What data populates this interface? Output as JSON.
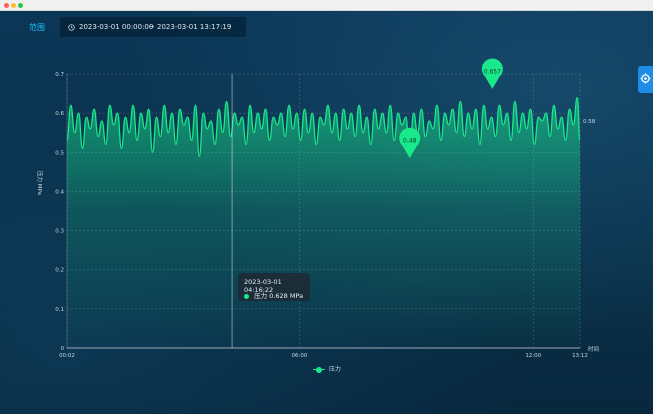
{
  "header": {
    "range_label": "范围",
    "start_time": "2023-03-01 00:00:00",
    "separator": "~",
    "end_time": "2023-03-01 13:17:19",
    "clock_icon": "clock-icon"
  },
  "side_button": {
    "icon": "settings-icon"
  },
  "colors": {
    "series": "#19e98a",
    "accent": "#19c2ff"
  },
  "chart_data": {
    "type": "area",
    "ylabel": "压力 MPa",
    "xlabel": "时间",
    "ylim": [
      0,
      0.7
    ],
    "y_ticks": [
      "0",
      "0.1",
      "0.2",
      "0.3",
      "0.4",
      "0.5",
      "0.6",
      "0.7"
    ],
    "x_range": [
      "00:02",
      "13:12"
    ],
    "x_ticks": [
      {
        "label": "00:02",
        "hour": 0.033
      },
      {
        "label": "06:00",
        "hour": 6.0
      },
      {
        "label": "12:00",
        "hour": 12.0
      },
      {
        "label": "13:12",
        "hour": 13.2
      }
    ],
    "grid": true,
    "legend": "bottom-center",
    "series": [
      {
        "name": "压力",
        "x": [
          0.03,
          0.13,
          0.23,
          0.33,
          0.43,
          0.53,
          0.63,
          0.73,
          0.83,
          0.93,
          1.03,
          1.13,
          1.23,
          1.33,
          1.43,
          1.53,
          1.63,
          1.73,
          1.83,
          1.93,
          2.03,
          2.13,
          2.23,
          2.33,
          2.43,
          2.53,
          2.63,
          2.73,
          2.83,
          2.93,
          3.03,
          3.13,
          3.23,
          3.33,
          3.43,
          3.53,
          3.63,
          3.73,
          3.83,
          3.93,
          4.03,
          4.13,
          4.23,
          4.33,
          4.43,
          4.53,
          4.63,
          4.73,
          4.83,
          4.93,
          5.03,
          5.13,
          5.23,
          5.33,
          5.43,
          5.53,
          5.63,
          5.73,
          5.83,
          5.93,
          6.03,
          6.13,
          6.23,
          6.33,
          6.43,
          6.53,
          6.63,
          6.73,
          6.83,
          6.93,
          7.03,
          7.13,
          7.23,
          7.33,
          7.43,
          7.53,
          7.63,
          7.73,
          7.83,
          7.93,
          8.03,
          8.13,
          8.23,
          8.33,
          8.43,
          8.53,
          8.63,
          8.73,
          8.83,
          8.93,
          9.03,
          9.13,
          9.23,
          9.33,
          9.43,
          9.53,
          9.63,
          9.73,
          9.83,
          9.93,
          10.03,
          10.13,
          10.23,
          10.33,
          10.43,
          10.53,
          10.63,
          10.73,
          10.83,
          10.93,
          11.03,
          11.13,
          11.23,
          11.33,
          11.43,
          11.53,
          11.63,
          11.73,
          11.83,
          11.93,
          12.03,
          12.13,
          12.23,
          12.33,
          12.43,
          12.53,
          12.63,
          12.73,
          12.83,
          12.93,
          13.03,
          13.13,
          13.2
        ],
        "y": [
          0.53,
          0.62,
          0.55,
          0.6,
          0.51,
          0.59,
          0.56,
          0.61,
          0.54,
          0.58,
          0.52,
          0.62,
          0.57,
          0.6,
          0.51,
          0.59,
          0.55,
          0.62,
          0.53,
          0.6,
          0.56,
          0.61,
          0.5,
          0.59,
          0.54,
          0.62,
          0.55,
          0.6,
          0.52,
          0.61,
          0.57,
          0.59,
          0.53,
          0.62,
          0.49,
          0.6,
          0.56,
          0.58,
          0.52,
          0.61,
          0.55,
          0.63,
          0.54,
          0.6,
          0.57,
          0.59,
          0.52,
          0.62,
          0.55,
          0.6,
          0.56,
          0.61,
          0.53,
          0.59,
          0.57,
          0.6,
          0.54,
          0.62,
          0.56,
          0.6,
          0.53,
          0.61,
          0.55,
          0.6,
          0.52,
          0.59,
          0.57,
          0.62,
          0.55,
          0.6,
          0.53,
          0.61,
          0.56,
          0.6,
          0.54,
          0.62,
          0.55,
          0.59,
          0.52,
          0.61,
          0.56,
          0.6,
          0.55,
          0.62,
          0.53,
          0.6,
          0.57,
          0.59,
          0.49,
          0.6,
          0.55,
          0.61,
          0.54,
          0.58,
          0.56,
          0.62,
          0.53,
          0.6,
          0.57,
          0.61,
          0.55,
          0.63,
          0.54,
          0.6,
          0.56,
          0.61,
          0.52,
          0.62,
          0.56,
          0.59,
          0.54,
          0.62,
          0.57,
          0.6,
          0.53,
          0.63,
          0.55,
          0.6,
          0.56,
          0.61,
          0.52,
          0.59,
          0.58,
          0.6,
          0.54,
          0.62,
          0.56,
          0.59,
          0.53,
          0.61,
          0.57,
          0.64,
          0.53
        ],
        "color": "#19e98a"
      }
    ],
    "markers": [
      {
        "type": "max",
        "label": "0.657",
        "x": 10.95,
        "y": 0.657
      },
      {
        "type": "min",
        "label": "0.48",
        "x": 8.83,
        "y": 0.48
      }
    ],
    "markline": {
      "label": "0.58",
      "y": 0.58
    },
    "tooltip": {
      "time": "2023-03-01 04:16:22",
      "series": "压力",
      "value": "0.628 MPa",
      "hour": 4.27
    }
  }
}
